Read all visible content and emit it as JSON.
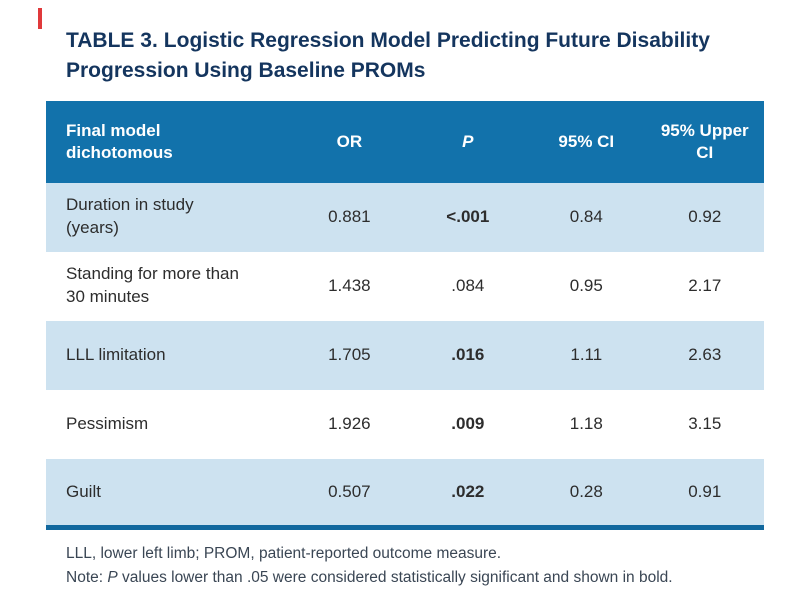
{
  "title": {
    "label": "TABLE 3.",
    "text": "Logistic Regression Model Predicting Future Disability Progression Using Baseline PROMs"
  },
  "table": {
    "header": {
      "col_name": "Final model dichotomous",
      "col_or": "OR",
      "col_p": "P",
      "col_ci": "95% CI",
      "col_upper": "95% Upper CI"
    },
    "rows": [
      {
        "name": "Duration in study (years)",
        "or": "0.881",
        "p": "<.001",
        "p_bold": true,
        "ci": "0.84",
        "upper": "0.92"
      },
      {
        "name": "Standing for more than 30 minutes",
        "or": "1.438",
        "p": ".084",
        "p_bold": false,
        "ci": "0.95",
        "upper": "2.17"
      },
      {
        "name": "LLL limitation",
        "or": "1.705",
        "p": ".016",
        "p_bold": true,
        "ci": "1.11",
        "upper": "2.63"
      },
      {
        "name": "Pessimism",
        "or": "1.926",
        "p": ".009",
        "p_bold": true,
        "ci": "1.18",
        "upper": "3.15"
      },
      {
        "name": "Guilt",
        "or": "0.507",
        "p": ".022",
        "p_bold": true,
        "ci": "0.28",
        "upper": "0.91"
      }
    ]
  },
  "footnotes": {
    "line1": "LLL, lower left limb; PROM, patient-reported outcome measure.",
    "note_prefix": "Note: ",
    "note_italic": "P",
    "note_rest": " values lower than .05 were considered statistically significant and shown in bold."
  },
  "colors": {
    "header_bg": "#1272ab",
    "row_alt_bg": "#cde2f0",
    "bottom_rule": "#11689e",
    "title_color": "#14355e",
    "accent_red": "#e0393b"
  }
}
